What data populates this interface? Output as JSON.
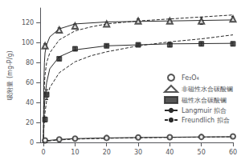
{
  "chart_data": {
    "type": "scatter",
    "ylabel": "吸附量 (mg-P/g)",
    "xlim": [
      -1,
      60
    ],
    "ylim": [
      0,
      135
    ],
    "xticks": [
      0,
      10,
      20,
      30,
      40,
      50,
      60
    ],
    "yticks": [
      0,
      20,
      40,
      60,
      80,
      100,
      120
    ],
    "grid": false,
    "legend": "right",
    "series": [
      {
        "name": "Fe₃O₄",
        "type": "scatter",
        "marker": "open_circle",
        "color": "#2a2a2a",
        "x": [
          0.5,
          5,
          10,
          20,
          30,
          40,
          50,
          60
        ],
        "values": [
          2.0,
          3.0,
          3.8,
          4.5,
          5.0,
          5.2,
          5.5,
          6.0
        ]
      },
      {
        "name": "非磁性水合碳酸镧",
        "type": "scatter",
        "marker": "open_triangle",
        "color": "#2a2a2a",
        "x": [
          0.5,
          5,
          10,
          20,
          30,
          40,
          50,
          60
        ],
        "values": [
          97,
          113,
          117,
          119,
          122,
          122,
          122,
          124
        ],
        "yerr": [
          2.0,
          2.0,
          2.0,
          2.0,
          2.0,
          2.0,
          3.5,
          2.5
        ]
      },
      {
        "name": "磁性水合碳酸镧",
        "type": "scatter",
        "marker": "filled_square",
        "color": "#2a2a2a",
        "x": [
          0.5,
          1.0,
          5,
          10,
          20,
          30,
          40,
          50,
          60
        ],
        "values": [
          23,
          48,
          84,
          94,
          97,
          98,
          98,
          99,
          99
        ],
        "yerr": [
          2.5,
          5.0,
          1.5,
          2.0,
          1.5,
          1.5,
          2.0,
          2.0,
          2.0
        ]
      },
      {
        "name": "Langmuir 拟合",
        "type": "line",
        "line_style": "solid",
        "color": "#2a2a2a",
        "x": [
          0,
          0.1,
          0.3,
          0.5,
          1,
          2,
          5,
          10,
          20,
          40,
          60
        ],
        "values": [
          0,
          55,
          80,
          90,
          98,
          106,
          114,
          119,
          121,
          122,
          123
        ]
      },
      {
        "name": "Langmuir 拟合",
        "type": "line",
        "line_style": "solid",
        "color": "#2a2a2a",
        "x": [
          0,
          0.1,
          0.3,
          0.5,
          1,
          2,
          5,
          10,
          20,
          40,
          60
        ],
        "values": [
          0,
          18,
          35,
          46,
          60,
          74,
          86,
          93,
          97,
          99,
          99.5
        ]
      },
      {
        "name": "Langmuir 拟合",
        "type": "line",
        "line_style": "solid",
        "color": "#2a2a2a",
        "x": [
          0,
          0.5,
          1,
          5,
          10,
          20,
          30,
          40,
          50,
          60
        ],
        "values": [
          0,
          1.2,
          1.8,
          3.0,
          3.8,
          4.5,
          4.9,
          5.2,
          5.5,
          5.7
        ]
      },
      {
        "name": "Freundlich 拟合",
        "type": "line",
        "line_style": "dashed",
        "color": "#2a2a2a",
        "x": [
          0,
          0.1,
          0.3,
          0.5,
          1,
          2,
          5,
          10,
          15,
          20,
          30,
          40,
          50,
          60
        ],
        "values": [
          0,
          38,
          58,
          68,
          80,
          90,
          103,
          112,
          116,
          119,
          122,
          124,
          126,
          128
        ]
      },
      {
        "name": "Freundlich 拟合",
        "type": "line",
        "line_style": "dashed",
        "color": "#2a2a2a",
        "x": [
          0,
          0.1,
          0.3,
          0.5,
          1,
          2,
          5,
          10,
          15,
          20,
          30,
          40,
          50,
          60
        ],
        "values": [
          0,
          12,
          22,
          30,
          42,
          55,
          70,
          81,
          87,
          91,
          97,
          101,
          104,
          108
        ]
      },
      {
        "name": "Freundlich 拟合",
        "type": "line",
        "line_style": "dashed",
        "color": "#2a2a2a",
        "x": [
          0,
          0.5,
          1,
          5,
          10,
          20,
          30,
          40,
          50,
          60
        ],
        "values": [
          0,
          0.8,
          1.2,
          2.5,
          3.3,
          4.1,
          4.6,
          5.0,
          5.3,
          5.6
        ]
      }
    ]
  }
}
